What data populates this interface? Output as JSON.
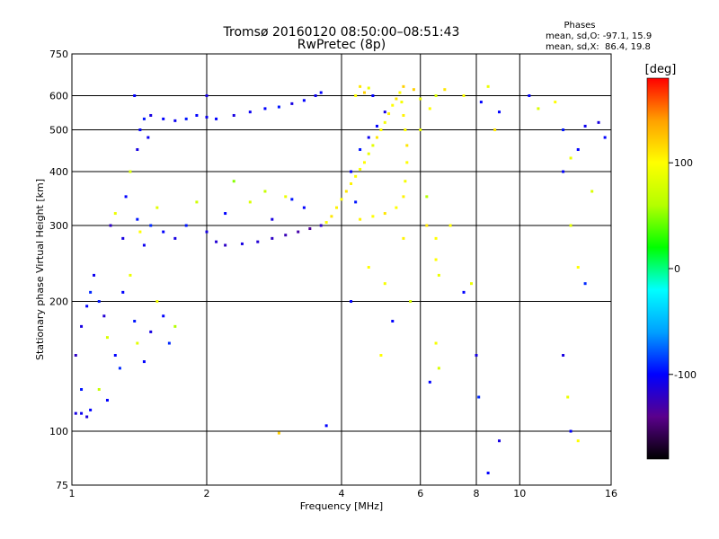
{
  "header": {
    "title": "Tromsø 20160120 08:50:00–08:51:43",
    "subtitle": "RwPretec (8p)"
  },
  "stats": {
    "heading": "Phases",
    "line_o": "mean, sd,O: -97.1, 15.9",
    "line_x": "mean, sd,X:  86.4, 19.8"
  },
  "colorbar": {
    "label": "[deg]",
    "ticks": [
      100,
      0,
      -100
    ],
    "min": -180,
    "max": 180,
    "stops": [
      "#000000",
      "#5a008c",
      "#0000ff",
      "#00a0ff",
      "#00ffff",
      "#00ff00",
      "#b4ff00",
      "#ffff00",
      "#ffa000",
      "#ff0000"
    ]
  },
  "chart_data": {
    "type": "scatter",
    "title": "Tromsø 20160120 08:50:00–08:51:43",
    "subtitle": "RwPretec (8p)",
    "xlabel": "Frequency [MHz]",
    "ylabel": "Stationary phase Virtual Height [km]",
    "x_scale": "log",
    "y_scale": "log",
    "xlim": [
      1,
      16
    ],
    "ylim": [
      75,
      750
    ],
    "x_ticks": [
      1,
      2,
      4,
      6,
      8,
      10,
      16
    ],
    "y_ticks": [
      75,
      100,
      200,
      300,
      400,
      500,
      600,
      750
    ],
    "grid": true,
    "color_scale": "phase [deg], -180 to 180",
    "series": [
      {
        "points": [
          [
            1.02,
            110,
            -110
          ],
          [
            1.05,
            110,
            -105
          ],
          [
            1.08,
            108,
            -112
          ],
          [
            1.1,
            112,
            -100
          ],
          [
            1.05,
            125,
            -95
          ],
          [
            1.02,
            150,
            -120
          ],
          [
            1.05,
            175,
            -110
          ],
          [
            1.08,
            195,
            -100
          ],
          [
            1.1,
            210,
            -90
          ],
          [
            1.12,
            230,
            -105
          ],
          [
            1.15,
            200,
            -95
          ],
          [
            1.18,
            185,
            -115
          ],
          [
            1.2,
            165,
            80
          ],
          [
            1.25,
            150,
            -100
          ],
          [
            1.28,
            140,
            -90
          ],
          [
            1.3,
            210,
            -100
          ],
          [
            1.35,
            230,
            90
          ],
          [
            1.38,
            180,
            -95
          ],
          [
            1.4,
            160,
            85
          ],
          [
            1.45,
            145,
            -100
          ],
          [
            1.5,
            170,
            -110
          ],
          [
            1.55,
            200,
            95
          ],
          [
            1.6,
            185,
            -100
          ],
          [
            1.65,
            160,
            -90
          ],
          [
            1.7,
            175,
            60
          ],
          [
            1.15,
            125,
            70
          ],
          [
            1.2,
            118,
            -100
          ],
          [
            1.22,
            300,
            -120
          ],
          [
            1.25,
            320,
            90
          ],
          [
            1.3,
            280,
            -110
          ],
          [
            1.32,
            350,
            -100
          ],
          [
            1.35,
            400,
            80
          ],
          [
            1.4,
            310,
            -95
          ],
          [
            1.42,
            290,
            100
          ],
          [
            1.45,
            270,
            -105
          ],
          [
            1.5,
            300,
            -90
          ],
          [
            1.55,
            330,
            85
          ],
          [
            1.6,
            290,
            -100
          ],
          [
            1.7,
            280,
            -110
          ],
          [
            1.8,
            300,
            -95
          ],
          [
            1.4,
            450,
            -110
          ],
          [
            1.42,
            500,
            -100
          ],
          [
            1.45,
            530,
            -95
          ],
          [
            1.48,
            480,
            -105
          ],
          [
            1.38,
            600,
            -100
          ],
          [
            1.5,
            540,
            -110
          ],
          [
            1.6,
            530,
            -100
          ],
          [
            1.7,
            525,
            -105
          ],
          [
            1.8,
            530,
            -95
          ],
          [
            1.9,
            540,
            -100
          ],
          [
            2.0,
            535,
            -105
          ],
          [
            2.1,
            530,
            -100
          ],
          [
            2.3,
            540,
            -110
          ],
          [
            2.5,
            550,
            -105
          ],
          [
            2.7,
            560,
            -100
          ],
          [
            2.9,
            565,
            -95
          ],
          [
            3.1,
            575,
            -110
          ],
          [
            3.3,
            585,
            -100
          ],
          [
            3.5,
            600,
            -105
          ],
          [
            3.6,
            610,
            -100
          ],
          [
            2.0,
            290,
            -110
          ],
          [
            2.1,
            275,
            -115
          ],
          [
            2.2,
            270,
            -120
          ],
          [
            2.4,
            272,
            -110
          ],
          [
            2.6,
            275,
            -115
          ],
          [
            2.8,
            280,
            -120
          ],
          [
            3.0,
            285,
            -125
          ],
          [
            3.2,
            290,
            -130
          ],
          [
            3.4,
            295,
            -135
          ],
          [
            3.6,
            300,
            -120
          ],
          [
            2.2,
            320,
            -100
          ],
          [
            2.5,
            340,
            80
          ],
          [
            2.8,
            310,
            -110
          ],
          [
            3.0,
            350,
            90
          ],
          [
            3.3,
            330,
            -100
          ],
          [
            2.3,
            380,
            50
          ],
          [
            2.7,
            360,
            70
          ],
          [
            3.1,
            345,
            -95
          ],
          [
            1.9,
            340,
            75
          ],
          [
            2.0,
            600,
            -110
          ],
          [
            3.7,
            305,
            100
          ],
          [
            3.8,
            315,
            110
          ],
          [
            3.9,
            330,
            105
          ],
          [
            4.0,
            345,
            100
          ],
          [
            4.1,
            360,
            110
          ],
          [
            4.2,
            375,
            105
          ],
          [
            4.3,
            390,
            100
          ],
          [
            4.4,
            405,
            95
          ],
          [
            4.5,
            420,
            100
          ],
          [
            4.6,
            440,
            90
          ],
          [
            4.7,
            460,
            85
          ],
          [
            4.8,
            480,
            110
          ],
          [
            4.9,
            500,
            100
          ],
          [
            5.0,
            520,
            95
          ],
          [
            5.1,
            545,
            105
          ],
          [
            5.2,
            570,
            100
          ],
          [
            5.3,
            590,
            110
          ],
          [
            5.4,
            610,
            100
          ],
          [
            5.5,
            630,
            120
          ],
          [
            5.45,
            580,
            95
          ],
          [
            5.5,
            540,
            105
          ],
          [
            5.55,
            500,
            100
          ],
          [
            5.6,
            460,
            110
          ],
          [
            5.6,
            420,
            100
          ],
          [
            5.55,
            380,
            95
          ],
          [
            5.5,
            350,
            105
          ],
          [
            5.3,
            330,
            100
          ],
          [
            5.0,
            320,
            110
          ],
          [
            4.7,
            315,
            100
          ],
          [
            4.4,
            310,
            105
          ],
          [
            4.2,
            400,
            -100
          ],
          [
            4.4,
            450,
            -95
          ],
          [
            4.6,
            480,
            -105
          ],
          [
            4.8,
            510,
            -100
          ],
          [
            5.0,
            550,
            -110
          ],
          [
            4.3,
            600,
            100
          ],
          [
            4.5,
            610,
            120
          ],
          [
            4.6,
            625,
            90
          ],
          [
            4.4,
            630,
            110
          ],
          [
            4.7,
            600,
            -100
          ],
          [
            6.0,
            590,
            90
          ],
          [
            6.3,
            560,
            100
          ],
          [
            6.5,
            600,
            80
          ],
          [
            6.8,
            620,
            110
          ],
          [
            7.5,
            600,
            100
          ],
          [
            8.2,
            580,
            -100
          ],
          [
            8.5,
            630,
            90
          ],
          [
            8.8,
            500,
            110
          ],
          [
            9.0,
            550,
            -100
          ],
          [
            6.5,
            250,
            100
          ],
          [
            6.6,
            230,
            90
          ],
          [
            6.2,
            300,
            110
          ],
          [
            6.5,
            280,
            100
          ],
          [
            5.8,
            620,
            120
          ],
          [
            6.0,
            500,
            90
          ],
          [
            6.2,
            350,
            60
          ],
          [
            6.5,
            160,
            95
          ],
          [
            6.3,
            130,
            -100
          ],
          [
            6.6,
            140,
            80
          ],
          [
            7.0,
            300,
            100
          ],
          [
            7.8,
            220,
            90
          ],
          [
            7.5,
            210,
            -100
          ],
          [
            8.0,
            150,
            -110
          ],
          [
            8.1,
            120,
            -90
          ],
          [
            8.5,
            80,
            -100
          ],
          [
            9.0,
            95,
            -110
          ],
          [
            10.5,
            600,
            -100
          ],
          [
            11.0,
            560,
            80
          ],
          [
            12.0,
            580,
            100
          ],
          [
            12.5,
            500,
            -95
          ],
          [
            13.0,
            430,
            90
          ],
          [
            13.5,
            450,
            -100
          ],
          [
            14.0,
            510,
            -105
          ],
          [
            15.0,
            520,
            -110
          ],
          [
            12.5,
            400,
            -100
          ],
          [
            13.0,
            300,
            85
          ],
          [
            13.5,
            240,
            100
          ],
          [
            14.0,
            220,
            -90
          ],
          [
            12.5,
            150,
            -110
          ],
          [
            13.0,
            100,
            -100
          ],
          [
            13.5,
            95,
            100
          ],
          [
            12.8,
            120,
            90
          ],
          [
            14.5,
            360,
            80
          ],
          [
            15.5,
            480,
            -100
          ],
          [
            3.7,
            103,
            -100
          ],
          [
            2.9,
            99,
            120
          ],
          [
            4.3,
            340,
            -95
          ],
          [
            4.6,
            240,
            100
          ],
          [
            4.2,
            200,
            -100
          ],
          [
            5.0,
            220,
            95
          ],
          [
            5.5,
            280,
            105
          ],
          [
            5.2,
            180,
            -100
          ],
          [
            4.9,
            150,
            100
          ],
          [
            5.7,
            200,
            80
          ]
        ]
      }
    ]
  }
}
